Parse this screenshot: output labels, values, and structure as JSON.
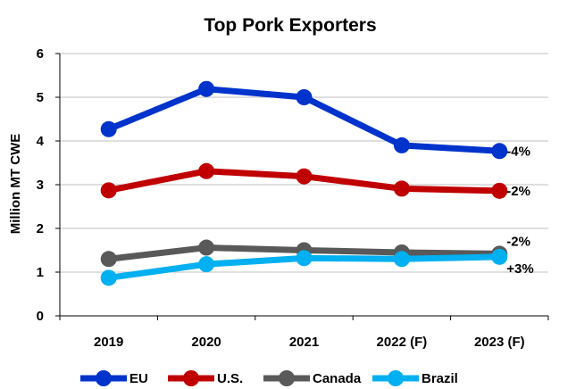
{
  "chart_data": {
    "type": "line",
    "title": "Top Pork Exporters",
    "xlabel": "",
    "ylabel": "Million MT CWE",
    "categories": [
      "2019",
      "2020",
      "2021",
      "2022 (F)",
      "2023 (F)"
    ],
    "ylim": [
      0,
      6
    ],
    "yticks": [
      "0",
      "1",
      "2",
      "3",
      "4",
      "5",
      "6"
    ],
    "grid": true,
    "legend_position": "bottom",
    "series": [
      {
        "name": "EU",
        "color": "#0033cc",
        "values": [
          4.27,
          5.19,
          5.0,
          3.9,
          3.77
        ],
        "annotation": "-4%"
      },
      {
        "name": "U.S.",
        "color": "#c00000",
        "values": [
          2.87,
          3.31,
          3.19,
          2.91,
          2.86
        ],
        "annotation": "-2%"
      },
      {
        "name": "Canada",
        "color": "#595959",
        "values": [
          1.3,
          1.56,
          1.5,
          1.45,
          1.42
        ],
        "annotation": "-2%"
      },
      {
        "name": "Brazil",
        "color": "#00b0f0",
        "values": [
          0.87,
          1.18,
          1.32,
          1.3,
          1.35
        ],
        "annotation": "+3%"
      }
    ]
  }
}
